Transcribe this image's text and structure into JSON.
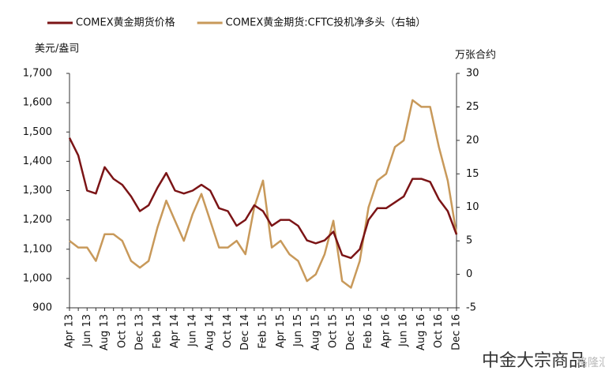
{
  "chart_data": {
    "type": "line",
    "y_label": "美元/盎司",
    "y2_label": "万张合约",
    "categories": [
      "Apr 13",
      null,
      "Jun 13",
      null,
      "Aug 13",
      null,
      "Oct 13",
      null,
      "Dec 13",
      null,
      "Feb 14",
      null,
      "Apr 14",
      null,
      "Jun 14",
      null,
      "Aug 14",
      null,
      "Oct 14",
      null,
      "Dec 14",
      null,
      "Feb 15",
      null,
      "Apr 15",
      null,
      "Jun 15",
      null,
      "Aug 15",
      null,
      "Oct 15",
      null,
      "Dec 15",
      null,
      "Feb 16",
      null,
      "Apr 16",
      null,
      "Jun 16",
      null,
      "Aug 16",
      null,
      "Oct 16",
      null,
      "Dec 16"
    ],
    "series": [
      {
        "name": "COMEX黄金期货价格",
        "color": "#7b1416",
        "values": [
          1480,
          1420,
          1300,
          1290,
          1380,
          1340,
          1320,
          1280,
          1230,
          1250,
          1310,
          1360,
          1300,
          1290,
          1300,
          1320,
          1300,
          1240,
          1230,
          1180,
          1200,
          1250,
          1230,
          1180,
          1200,
          1200,
          1180,
          1130,
          1120,
          1130,
          1160,
          1080,
          1070,
          1100,
          1200,
          1240,
          1240,
          1260,
          1280,
          1340,
          1340,
          1330,
          1270,
          1230,
          1150
        ]
      },
      {
        "name": "COMEX黄金期货:CFTC投机净多头（右轴）",
        "color": "#c8995a",
        "axis": "y2",
        "values": [
          5,
          4,
          4,
          2,
          6,
          6,
          5,
          2,
          1,
          2,
          7,
          11,
          8,
          5,
          9,
          12,
          8,
          4,
          4,
          5,
          3,
          10,
          14,
          4,
          5,
          3,
          2,
          -1,
          0,
          3,
          8,
          -1,
          -2,
          2,
          10,
          14,
          15,
          19,
          20,
          26,
          25,
          25,
          19,
          14,
          6
        ]
      }
    ],
    "ylim": [
      900,
      1700
    ],
    "yticks": [
      900,
      {
        "value": 1000,
        "label": "1,000"
      },
      {
        "value": 1100,
        "label": "1,100"
      },
      {
        "value": 1200,
        "label": "1,200"
      },
      {
        "value": 1300,
        "label": "1,300"
      },
      {
        "value": 1400,
        "label": "1,400"
      },
      {
        "value": 1500,
        "label": "1,500"
      },
      {
        "value": 1600,
        "label": "1,600"
      },
      {
        "value": 1700,
        "label": "1,700"
      }
    ],
    "y2lim": [
      -5,
      30
    ],
    "y2ticks": [
      -5,
      0,
      5,
      10,
      15,
      20,
      25,
      30
    ],
    "legend": "top",
    "source": "中金大宗商品",
    "watermark": "格隆汇"
  }
}
